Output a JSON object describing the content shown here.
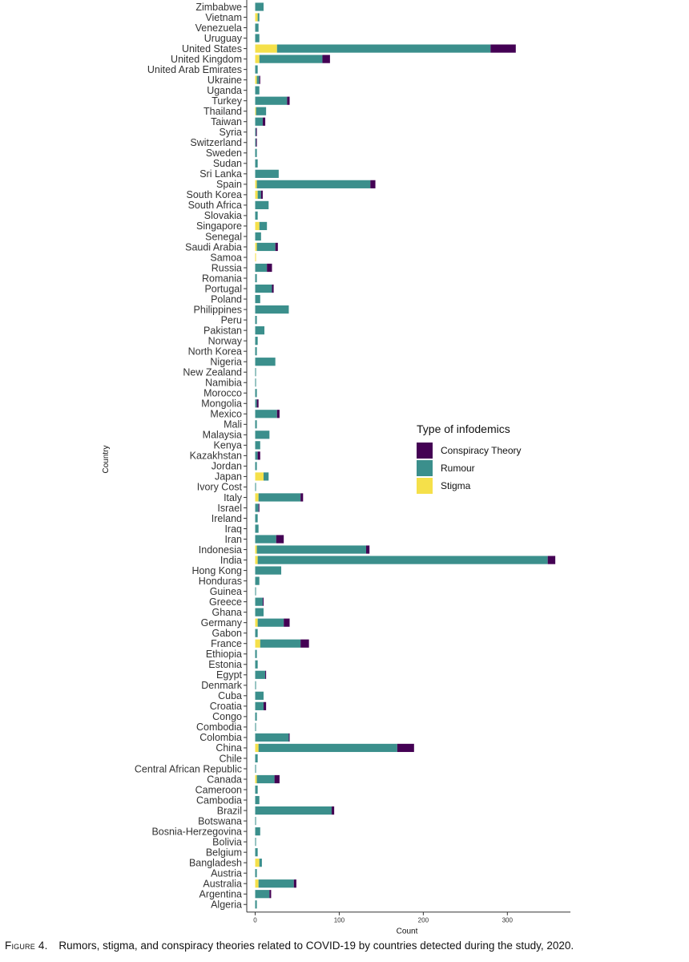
{
  "caption": {
    "label": "Figure 4.",
    "text": "Rumors, stigma, and conspiracy theories related to COVID-19 by countries detected during the study, 2020."
  },
  "legend": {
    "title": "Type of infodemics",
    "items": [
      {
        "label": "Conspiracy Theory",
        "color": "#440154"
      },
      {
        "label": "Rumour",
        "color": "#3b8f8c"
      },
      {
        "label": "Stigma",
        "color": "#f5e04a"
      }
    ]
  },
  "chart_data": {
    "type": "bar",
    "orientation": "horizontal",
    "stacked": true,
    "xlabel": "Count",
    "ylabel": "Country",
    "xlim": [
      -10,
      375
    ],
    "xticks": [
      0,
      100,
      200,
      300
    ],
    "grid": false,
    "legend_position": "right",
    "categories": [
      "Zimbabwe",
      "Vietnam",
      "Venezuela",
      "Uruguay",
      "United States",
      "United Kingdom",
      "United Arab Emirates",
      "Ukraine",
      "Uganda",
      "Turkey",
      "Thailand",
      "Taiwan",
      "Syria",
      "Switzerland",
      "Sweden",
      "Sudan",
      "Sri Lanka",
      "Spain",
      "South Korea",
      "South Africa",
      "Slovakia",
      "Singapore",
      "Senegal",
      "Saudi Arabia",
      "Samoa",
      "Russia",
      "Romania",
      "Portugal",
      "Poland",
      "Philippines",
      "Peru",
      "Pakistan",
      "Norway",
      "North Korea",
      "Nigeria",
      "New Zealand",
      "Namibia",
      "Morocco",
      "Mongolia",
      "Mexico",
      "Mali",
      "Malaysia",
      "Kenya",
      "Kazakhstan",
      "Jordan",
      "Japan",
      "Ivory Cost",
      "Italy",
      "Israel",
      "Ireland",
      "Iraq",
      "Iran",
      "Indonesia",
      "India",
      "Hong Kong",
      "Honduras",
      "Guinea",
      "Greece",
      "Ghana",
      "Germany",
      "Gabon",
      "France",
      "Ethiopia",
      "Estonia",
      "Egypt",
      "Denmark",
      "Cuba",
      "Croatia",
      "Congo",
      "Combodia",
      "Colombia",
      "China",
      "Chile",
      "Central African Republic",
      "Canada",
      "Cameroon",
      "Cambodia",
      "Brazil",
      "Botswana",
      "Bosnia-Herzegovina",
      "Bolivia",
      "Belgium",
      "Bangladesh",
      "Austria",
      "Australia",
      "Argentina",
      "Algeria"
    ],
    "series": [
      {
        "name": "Stigma",
        "values": [
          0,
          3,
          0,
          0,
          26,
          5,
          0,
          2,
          0,
          0,
          1,
          0,
          0,
          0,
          0,
          0,
          0,
          2,
          3,
          0,
          0,
          5,
          0,
          2,
          1,
          0,
          0,
          0,
          0,
          0,
          0,
          0,
          0,
          0,
          0,
          0,
          0,
          0,
          0,
          0,
          0,
          0,
          0,
          0,
          0,
          10,
          0,
          4,
          0,
          0,
          0,
          0,
          2,
          3,
          0,
          0,
          0,
          0,
          0,
          3,
          0,
          6,
          0,
          0,
          0,
          0,
          0,
          0,
          0,
          0,
          0,
          4,
          0,
          0,
          2,
          0,
          0,
          0,
          0,
          0,
          0,
          0,
          5,
          0,
          4,
          0,
          0
        ]
      },
      {
        "name": "Rumour",
        "values": [
          10,
          2,
          4,
          5,
          254,
          75,
          3,
          3,
          5,
          38,
          12,
          9,
          1,
          1,
          2,
          3,
          28,
          135,
          4,
          16,
          3,
          9,
          7,
          22,
          0,
          14,
          2,
          20,
          6,
          40,
          2,
          11,
          3,
          2,
          24,
          1,
          1,
          2,
          2,
          26,
          2,
          17,
          6,
          3,
          2,
          6,
          1,
          50,
          4,
          3,
          4,
          25,
          130,
          345,
          31,
          5,
          1,
          9,
          10,
          31,
          3,
          48,
          2,
          3,
          12,
          1,
          10,
          10,
          2,
          1,
          40,
          165,
          3,
          1,
          21,
          3,
          5,
          91,
          1,
          6,
          1,
          3,
          3,
          2,
          42,
          17,
          2
        ]
      },
      {
        "name": "Conspiracy Theory",
        "values": [
          0,
          0,
          0,
          0,
          30,
          9,
          0,
          1,
          0,
          3,
          0,
          3,
          1,
          1,
          0,
          0,
          0,
          6,
          2,
          0,
          0,
          0,
          0,
          3,
          0,
          6,
          0,
          2,
          0,
          0,
          0,
          0,
          0,
          0,
          0,
          0,
          0,
          0,
          2,
          3,
          0,
          0,
          0,
          3,
          0,
          0,
          0,
          3,
          1,
          0,
          0,
          9,
          4,
          9,
          0,
          0,
          0,
          1,
          0,
          7,
          0,
          10,
          0,
          0,
          1,
          0,
          0,
          3,
          0,
          0,
          1,
          20,
          0,
          0,
          6,
          0,
          0,
          3,
          0,
          0,
          0,
          0,
          0,
          0,
          3,
          2,
          0
        ]
      }
    ]
  }
}
